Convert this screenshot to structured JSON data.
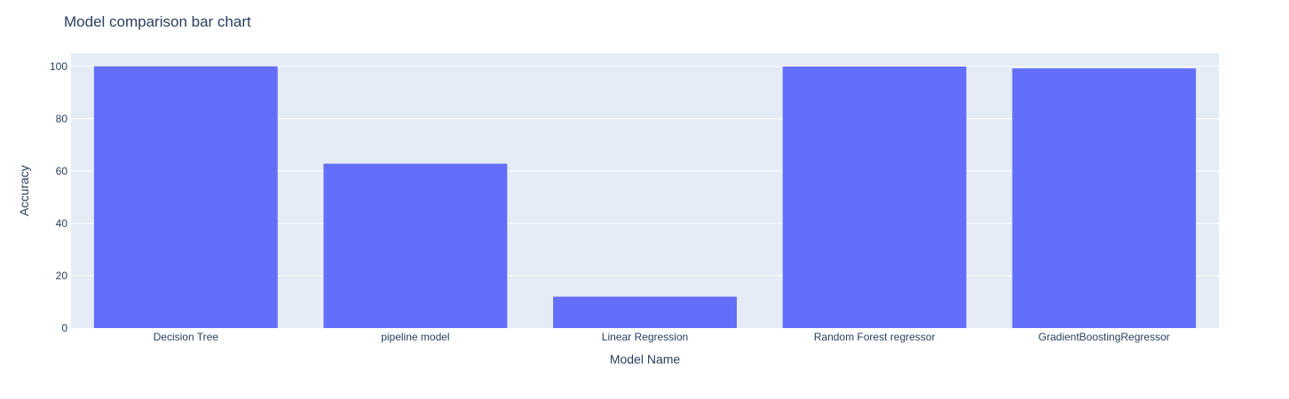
{
  "chart_data": {
    "type": "bar",
    "title": "Model comparison bar chart",
    "xlabel": "Model Name",
    "ylabel": "Accuracy",
    "categories": [
      "Decision Tree",
      "pipeline model",
      "Linear Regression",
      "Random Forest regressor",
      "GradientBoostingRegressor"
    ],
    "values": [
      100,
      62.8,
      12,
      99.9,
      99.2
    ],
    "ylim": [
      0,
      105
    ],
    "yticks": [
      0,
      20,
      40,
      60,
      80,
      100
    ],
    "grid": true,
    "legend": "none",
    "colors": {
      "bar": "#636efa",
      "plot_background": "#e5ecf6",
      "grid": "#ffffff",
      "text": "#2a3f5f"
    }
  }
}
